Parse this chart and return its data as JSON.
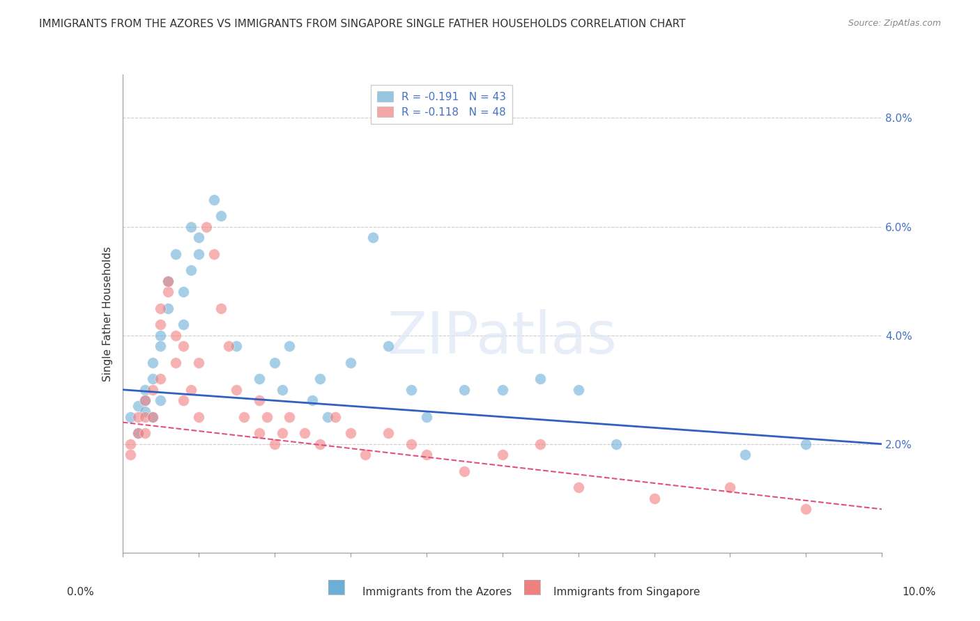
{
  "title": "IMMIGRANTS FROM THE AZORES VS IMMIGRANTS FROM SINGAPORE SINGLE FATHER HOUSEHOLDS CORRELATION CHART",
  "source": "Source: ZipAtlas.com",
  "ylabel": "Single Father Households",
  "legend_azores": "R = -0.191   N = 43",
  "legend_singapore": "R = -0.118   N = 48",
  "ytick_labels": [
    "2.0%",
    "4.0%",
    "6.0%",
    "8.0%"
  ],
  "ytick_values": [
    0.02,
    0.04,
    0.06,
    0.08
  ],
  "xlim": [
    0.0,
    0.1
  ],
  "ylim": [
    0.0,
    0.088
  ],
  "color_azores": "#6baed6",
  "color_singapore": "#f08080",
  "azores_x": [
    0.001,
    0.002,
    0.002,
    0.003,
    0.003,
    0.003,
    0.004,
    0.004,
    0.004,
    0.005,
    0.005,
    0.005,
    0.006,
    0.006,
    0.007,
    0.008,
    0.008,
    0.009,
    0.009,
    0.01,
    0.01,
    0.012,
    0.013,
    0.015,
    0.018,
    0.02,
    0.021,
    0.022,
    0.025,
    0.026,
    0.027,
    0.03,
    0.033,
    0.035,
    0.038,
    0.04,
    0.045,
    0.05,
    0.055,
    0.06,
    0.065,
    0.082,
    0.09
  ],
  "azores_y": [
    0.025,
    0.027,
    0.022,
    0.03,
    0.028,
    0.026,
    0.035,
    0.032,
    0.025,
    0.04,
    0.038,
    0.028,
    0.05,
    0.045,
    0.055,
    0.048,
    0.042,
    0.06,
    0.052,
    0.058,
    0.055,
    0.065,
    0.062,
    0.038,
    0.032,
    0.035,
    0.03,
    0.038,
    0.028,
    0.032,
    0.025,
    0.035,
    0.058,
    0.038,
    0.03,
    0.025,
    0.03,
    0.03,
    0.032,
    0.03,
    0.02,
    0.018,
    0.02
  ],
  "singapore_x": [
    0.001,
    0.001,
    0.002,
    0.002,
    0.003,
    0.003,
    0.003,
    0.004,
    0.004,
    0.005,
    0.005,
    0.005,
    0.006,
    0.006,
    0.007,
    0.007,
    0.008,
    0.008,
    0.009,
    0.01,
    0.01,
    0.011,
    0.012,
    0.013,
    0.014,
    0.015,
    0.016,
    0.018,
    0.018,
    0.019,
    0.02,
    0.021,
    0.022,
    0.024,
    0.026,
    0.028,
    0.03,
    0.032,
    0.035,
    0.038,
    0.04,
    0.045,
    0.05,
    0.055,
    0.06,
    0.07,
    0.08,
    0.09
  ],
  "singapore_y": [
    0.02,
    0.018,
    0.025,
    0.022,
    0.028,
    0.025,
    0.022,
    0.03,
    0.025,
    0.045,
    0.042,
    0.032,
    0.048,
    0.05,
    0.04,
    0.035,
    0.038,
    0.028,
    0.03,
    0.035,
    0.025,
    0.06,
    0.055,
    0.045,
    0.038,
    0.03,
    0.025,
    0.028,
    0.022,
    0.025,
    0.02,
    0.022,
    0.025,
    0.022,
    0.02,
    0.025,
    0.022,
    0.018,
    0.022,
    0.02,
    0.018,
    0.015,
    0.018,
    0.02,
    0.012,
    0.01,
    0.012,
    0.008
  ],
  "azores_trend_x": [
    0.0,
    0.1
  ],
  "azores_trend_y": [
    0.03,
    0.02
  ],
  "singapore_trend_x": [
    0.0,
    0.1
  ],
  "singapore_trend_y": [
    0.024,
    0.008
  ]
}
